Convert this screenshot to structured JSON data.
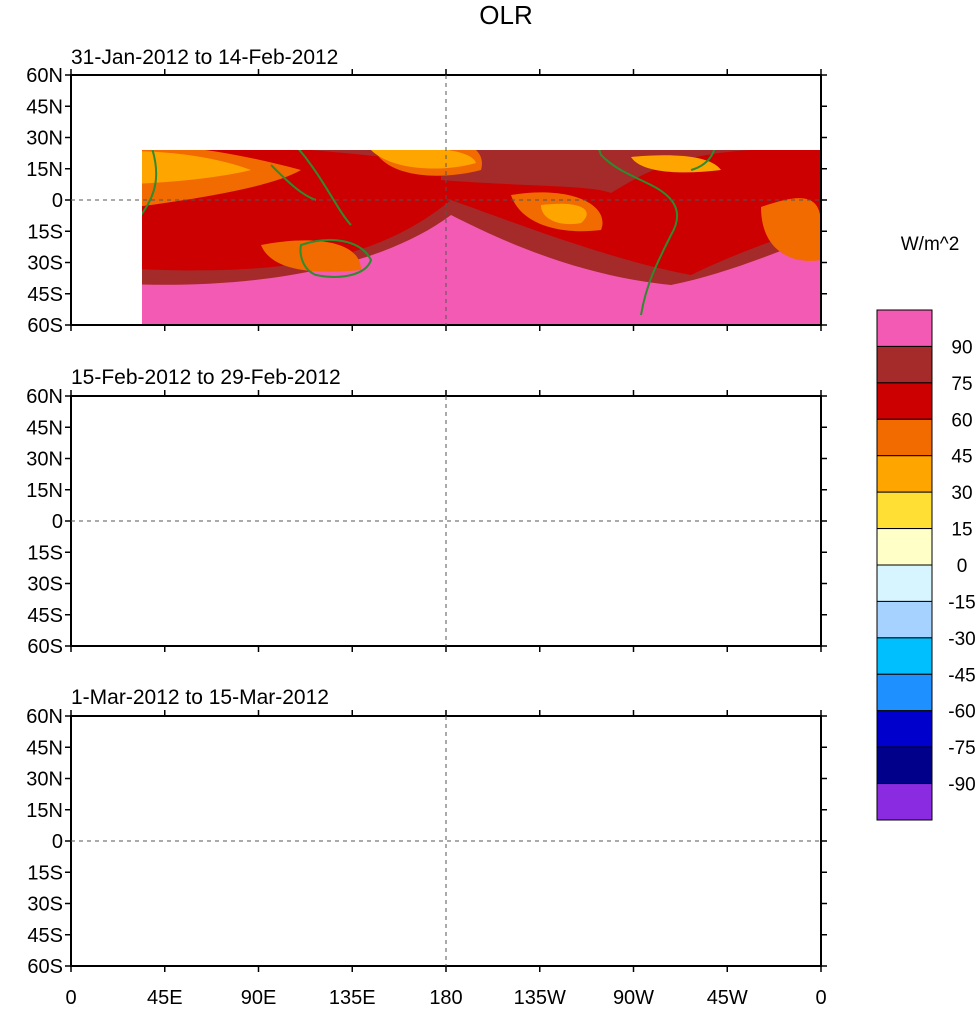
{
  "title": "OLR",
  "units": "W/m^2",
  "panels": [
    {
      "period": "31-Jan-2012 to 14-Feb-2012"
    },
    {
      "period": "15-Feb-2012 to 29-Feb-2012"
    },
    {
      "period": "1-Mar-2012 to 15-Mar-2012"
    }
  ],
  "lat_ticks": [
    "60N",
    "45N",
    "30N",
    "15N",
    "0",
    "15S",
    "30S",
    "45S",
    "60S"
  ],
  "lon_ticks": [
    "0",
    "45E",
    "90E",
    "135E",
    "180",
    "135W",
    "90W",
    "45W",
    "0"
  ],
  "colorbar": {
    "labels": [
      "90",
      "75",
      "60",
      "45",
      "30",
      "15",
      "0",
      "-15",
      "-30",
      "-45",
      "-60",
      "-75",
      "-90"
    ],
    "colors": [
      "#f25ab4",
      "#a52a2a",
      "#cc0000",
      "#f26b00",
      "#ffa500",
      "#ffdf33",
      "#ffffc8",
      "#d6f5ff",
      "#a6d2ff",
      "#00bfff",
      "#1e90ff",
      "#0000cd",
      "#00008b",
      "#8a2be2"
    ]
  },
  "colors": {
    "background_pink": "#f25ab4",
    "band_dark": "#a52a2a",
    "band_red": "#cc0000",
    "band_orange": "#f26b00",
    "band_light_orange": "#ffa500",
    "coast": "#2e8b2e"
  }
}
